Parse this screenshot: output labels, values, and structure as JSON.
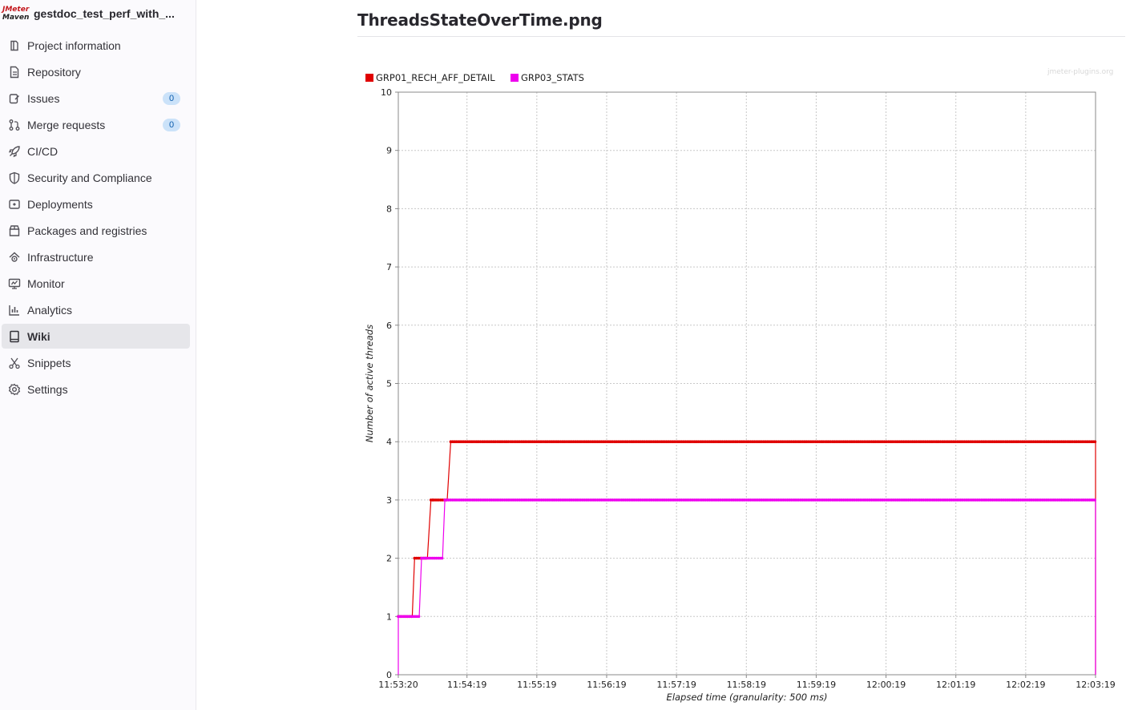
{
  "sidebar": {
    "project_name": "gestdoc_test_perf_with_...",
    "logo": {
      "line1": "JMeter",
      "line2": "Maven"
    },
    "items": [
      {
        "label": "Project information",
        "icon": "project-icon"
      },
      {
        "label": "Repository",
        "icon": "document-icon"
      },
      {
        "label": "Issues",
        "icon": "issues-icon",
        "badge": "0"
      },
      {
        "label": "Merge requests",
        "icon": "merge-request-icon",
        "badge": "0"
      },
      {
        "label": "CI/CD",
        "icon": "rocket-icon"
      },
      {
        "label": "Security and Compliance",
        "icon": "shield-icon"
      },
      {
        "label": "Deployments",
        "icon": "deployments-icon"
      },
      {
        "label": "Packages and registries",
        "icon": "package-icon"
      },
      {
        "label": "Infrastructure",
        "icon": "cloud-gear-icon"
      },
      {
        "label": "Monitor",
        "icon": "monitor-icon"
      },
      {
        "label": "Analytics",
        "icon": "chart-icon"
      },
      {
        "label": "Wiki",
        "icon": "book-icon",
        "active": true
      },
      {
        "label": "Snippets",
        "icon": "scissors-icon"
      },
      {
        "label": "Settings",
        "icon": "settings-icon"
      }
    ]
  },
  "page": {
    "title": "ThreadsStateOverTime.png",
    "watermark": "jmeter-plugins.org"
  },
  "colors": {
    "series1": "#e00000",
    "series2": "#ee00ee",
    "grid": "#c8c8c8"
  },
  "chart_data": {
    "type": "line",
    "title": "",
    "xlabel": "Elapsed time (granularity: 500 ms)",
    "ylabel": "Number of active threads",
    "x_unit": "seconds since 11:53:20",
    "x_ticks": [
      "11:53:20",
      "11:54:19",
      "11:55:19",
      "11:56:19",
      "11:57:19",
      "11:58:19",
      "11:59:19",
      "12:00:19",
      "12:01:19",
      "12:02:19",
      "12:03:19"
    ],
    "x_tick_values": [
      0,
      59,
      119,
      179,
      239,
      299,
      359,
      419,
      479,
      539,
      599
    ],
    "xlim": [
      0,
      599
    ],
    "ylim": [
      0,
      10
    ],
    "y_ticks": [
      0,
      1,
      2,
      3,
      4,
      5,
      6,
      7,
      8,
      9,
      10
    ],
    "grid": true,
    "legend_position": "top-left",
    "series": [
      {
        "name": "GRP01_RECH_AFF_DETAIL",
        "color": "#e00000",
        "points": [
          [
            0,
            1
          ],
          [
            12,
            1
          ],
          [
            14,
            2
          ],
          [
            25,
            2
          ],
          [
            28,
            3
          ],
          [
            30,
            3
          ],
          [
            42,
            3
          ],
          [
            45,
            4
          ],
          [
            599,
            4
          ],
          [
            599,
            0
          ]
        ]
      },
      {
        "name": "GRP03_STATS",
        "color": "#ee00ee",
        "points": [
          [
            0,
            0
          ],
          [
            0,
            1
          ],
          [
            18,
            1
          ],
          [
            20,
            2
          ],
          [
            38,
            2
          ],
          [
            40,
            3
          ],
          [
            599,
            3
          ],
          [
            599,
            0
          ]
        ]
      }
    ]
  }
}
